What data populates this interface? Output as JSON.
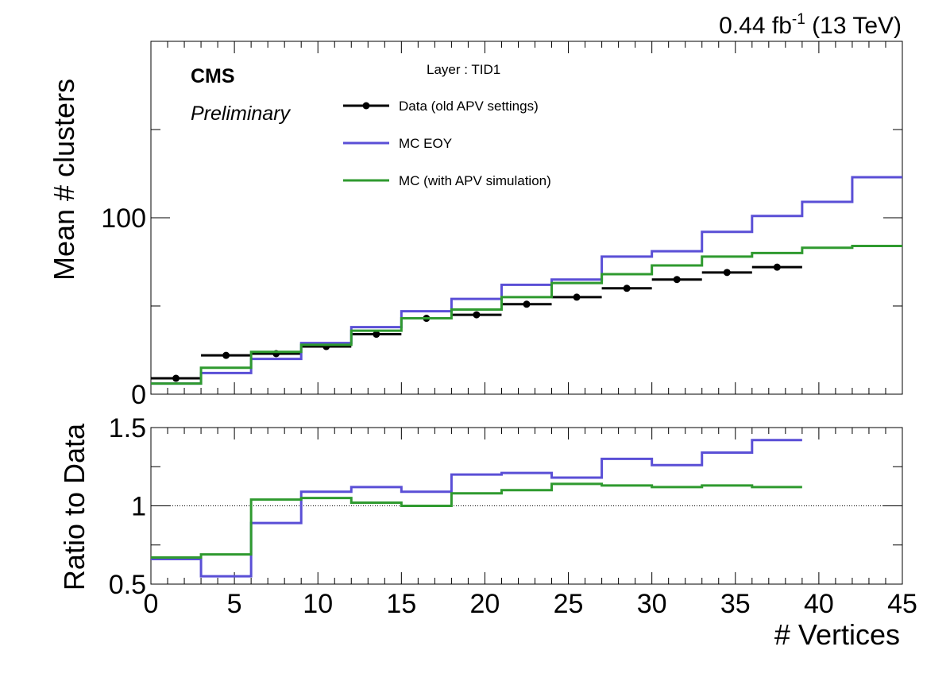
{
  "colors": {
    "data": "#000000",
    "mc_eoy": "#5a4fd6",
    "mc_apv": "#2f9a2f"
  },
  "lumi": {
    "main": "0.44 fb",
    "sup": "-1",
    "energy": " (13 TeV)"
  },
  "cms": "CMS",
  "preliminary": "Preliminary",
  "layer": "Layer : TID1",
  "chart_data": [
    {
      "type": "line",
      "ylabel": "Mean # clusters",
      "xlim": [
        0,
        45
      ],
      "ylim": [
        0,
        200
      ],
      "yticks": [
        "0",
        "100"
      ],
      "legend_position": "top-left",
      "x_edges": [
        0,
        3,
        6,
        9,
        12,
        15,
        18,
        21,
        24,
        27,
        30,
        33,
        36,
        39,
        42,
        45
      ],
      "series": [
        {
          "name": "Data (old APV settings)",
          "style": "points",
          "values": [
            9,
            22,
            23,
            27,
            34,
            43,
            45,
            51,
            55,
            60,
            65,
            69,
            72
          ]
        },
        {
          "name": "MC EOY",
          "style": "step",
          "values": [
            6,
            12,
            20,
            29,
            38,
            47,
            54,
            62,
            65,
            78,
            81,
            92,
            101,
            109,
            123
          ]
        },
        {
          "name": "MC (with APV simulation)",
          "style": "step",
          "values": [
            6,
            15,
            24,
            28,
            36,
            43,
            48,
            55,
            63,
            68,
            73,
            78,
            80,
            83,
            84
          ]
        }
      ]
    },
    {
      "type": "line",
      "ylabel": "Ratio to Data",
      "xlabel": "# Vertices",
      "xlim": [
        0,
        45
      ],
      "ylim": [
        0.5,
        1.5
      ],
      "xticks": [
        "0",
        "5",
        "10",
        "15",
        "20",
        "25",
        "30",
        "35",
        "40",
        "45"
      ],
      "yticks": [
        "0.5",
        "1",
        "1.5"
      ],
      "reference_line": 1,
      "x_edges": [
        0,
        3,
        6,
        9,
        12,
        15,
        18,
        21,
        24,
        27,
        30,
        33,
        36,
        39
      ],
      "series": [
        {
          "name": "MC EOY",
          "values": [
            0.66,
            0.55,
            0.89,
            1.09,
            1.12,
            1.09,
            1.2,
            1.21,
            1.18,
            1.3,
            1.26,
            1.34,
            1.42
          ]
        },
        {
          "name": "MC (with APV simulation)",
          "values": [
            0.67,
            0.69,
            1.04,
            1.05,
            1.02,
            1.0,
            1.08,
            1.1,
            1.14,
            1.13,
            1.12,
            1.13,
            1.12
          ]
        }
      ]
    }
  ]
}
